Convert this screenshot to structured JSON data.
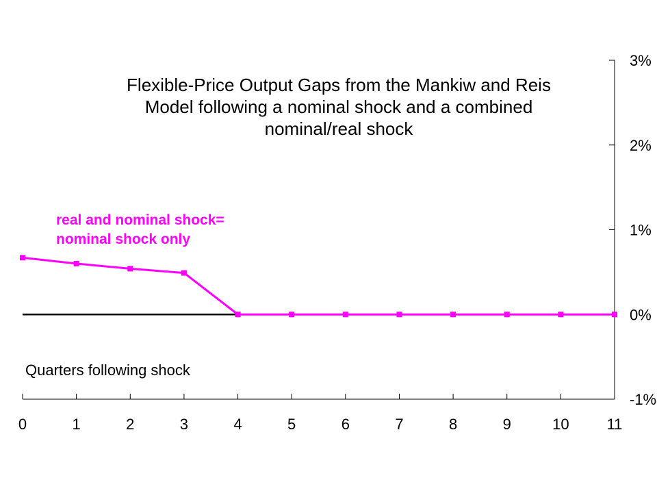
{
  "chart_data": {
    "type": "line",
    "title": "Flexible-Price Output Gaps from the Mankiw and Reis Model following a nominal shock and a combined nominal/real shock",
    "xlabel": "Quarters following shock",
    "ylabel": "",
    "x": [
      0,
      1,
      2,
      3,
      4,
      5,
      6,
      7,
      8,
      9,
      10,
      11
    ],
    "x_tick_labels": [
      "0",
      "1",
      "2",
      "3",
      "4",
      "5",
      "6",
      "7",
      "8",
      "9",
      "10",
      "11"
    ],
    "y_tick_values": [
      -1,
      0,
      1,
      2,
      3
    ],
    "y_tick_labels": [
      "-1%",
      "0%",
      "1%",
      "2%",
      "3%"
    ],
    "ylim": [
      -1,
      3
    ],
    "xlim": [
      0,
      11
    ],
    "y_axis_side": "right",
    "grid": false,
    "series": [
      {
        "name": "real and nominal shock= nominal shock only",
        "color": "#ff00ff",
        "marker": "square",
        "values": [
          0.67,
          0.6,
          0.54,
          0.49,
          0,
          0,
          0,
          0,
          0,
          0,
          0,
          0
        ]
      }
    ],
    "legend": {
      "placement": "left, above line",
      "lines": [
        "real and nominal shock=",
        "nominal shock only"
      ]
    }
  }
}
